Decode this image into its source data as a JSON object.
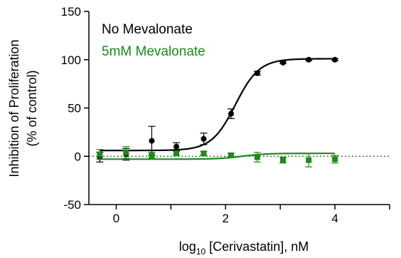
{
  "chart_data": {
    "type": "scatter",
    "title": "",
    "xlabel": {
      "prefix": "log",
      "subscript": "10",
      "suffix": " [Cerivastatin], nM"
    },
    "ylabel": [
      "Inhibition of Proliferation",
      "(% of control)"
    ],
    "xlim": [
      -0.5,
      5
    ],
    "ylim": [
      -50,
      150
    ],
    "x_ticks": [
      0,
      2,
      4
    ],
    "y_ticks": [
      -50,
      0,
      50,
      100,
      150
    ],
    "reference_line_y": 0,
    "legend": "top-left",
    "series": [
      {
        "name": "No Mevalonate",
        "color": "#000000",
        "marker": "circle",
        "points": [
          {
            "x": -0.3,
            "y": -1,
            "err": 5
          },
          {
            "x": 0.18,
            "y": 2,
            "err": 6
          },
          {
            "x": 0.65,
            "y": 16,
            "err": 15
          },
          {
            "x": 1.1,
            "y": 10,
            "err": 4
          },
          {
            "x": 1.6,
            "y": 18,
            "err": 6
          },
          {
            "x": 2.1,
            "y": 44,
            "err": 5
          },
          {
            "x": 2.58,
            "y": 86,
            "err": 2
          },
          {
            "x": 3.05,
            "y": 97,
            "err": 1
          },
          {
            "x": 3.52,
            "y": 100,
            "err": 1
          },
          {
            "x": 4.0,
            "y": 100,
            "err": 1
          }
        ],
        "fit": {
          "bottom": 6,
          "top": 101,
          "log_ec50": 2.18,
          "hill": 2.0
        }
      },
      {
        "name": "5mM Mevalonate",
        "color": "#1a8c1a",
        "marker": "square",
        "points": [
          {
            "x": -0.3,
            "y": 2,
            "err": 5
          },
          {
            "x": 0.18,
            "y": 4,
            "err": 6
          },
          {
            "x": 0.65,
            "y": 1,
            "err": 3
          },
          {
            "x": 1.1,
            "y": 3,
            "err": 2
          },
          {
            "x": 1.6,
            "y": 3,
            "err": 2
          },
          {
            "x": 2.1,
            "y": 1,
            "err": 2
          },
          {
            "x": 2.58,
            "y": -1,
            "err": 5
          },
          {
            "x": 3.05,
            "y": -4,
            "err": 3
          },
          {
            "x": 3.52,
            "y": -4,
            "err": 7
          },
          {
            "x": 4.0,
            "y": -3,
            "err": 4
          }
        ],
        "fit": {
          "bottom": -3,
          "top": 3,
          "log_ec50": 2.3,
          "hill": 2.0
        }
      }
    ]
  }
}
